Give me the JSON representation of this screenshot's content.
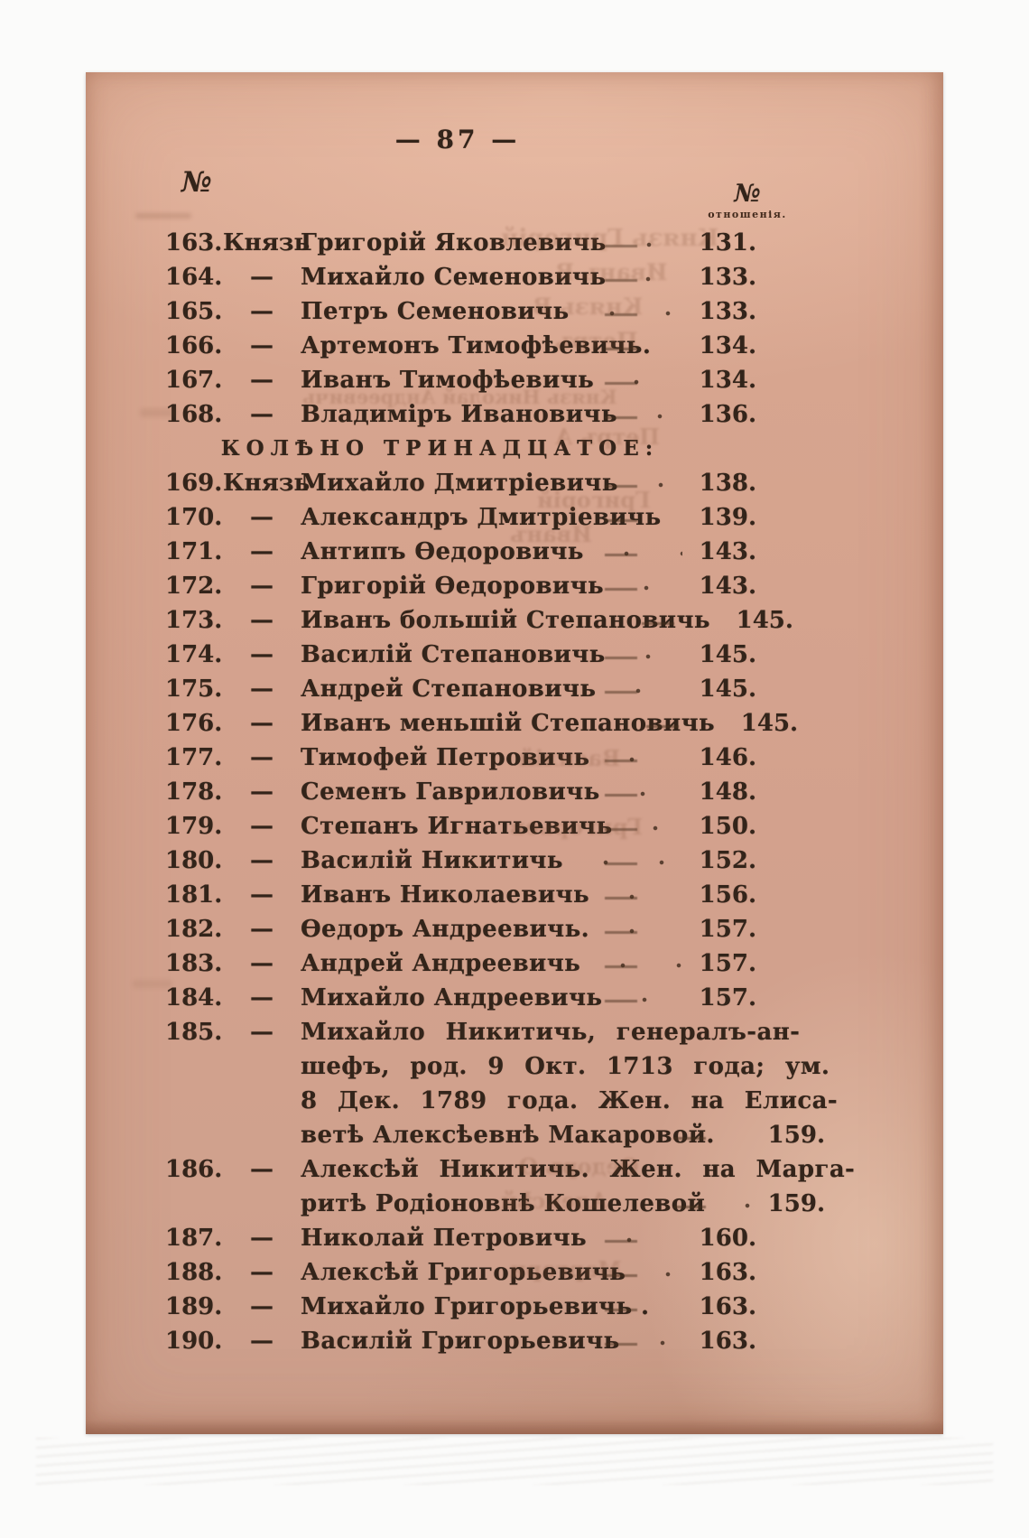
{
  "page": {
    "folio": "— 87 —",
    "left_col_header": "№",
    "right_col_header": "№",
    "right_col_caption": "отношенія.",
    "paper_color": "#d5a28c",
    "ink_color": "#33241a"
  },
  "sections": [
    {
      "header": "",
      "entries": [
        {
          "num": "163.",
          "prefix": "Князь",
          "lines": [
            "Григорій Яковлевичь"
          ],
          "page": "131."
        },
        {
          "num": "164.",
          "prefix": "—",
          "lines": [
            "Михайло Семеновичь"
          ],
          "page": "133."
        },
        {
          "num": "165.",
          "prefix": "—",
          "lines": [
            "Петръ Семеновичь"
          ],
          "page": "133."
        },
        {
          "num": "166.",
          "prefix": "—",
          "lines": [
            "Артемонъ Тимофѣевичь."
          ],
          "page": "134."
        },
        {
          "num": "167.",
          "prefix": "—",
          "lines": [
            "Иванъ Тимофѣевичь"
          ],
          "page": "134."
        },
        {
          "num": "168.",
          "prefix": "—",
          "lines": [
            "Владиміръ Ивановичь"
          ],
          "page": "136."
        }
      ]
    },
    {
      "header": "КОЛѢНО ТРИНАДЦАТОЕ:",
      "entries": [
        {
          "num": "169.",
          "prefix": "Князь",
          "lines": [
            "Михайло Дмитріевичь"
          ],
          "page": "138."
        },
        {
          "num": "170.",
          "prefix": "—",
          "lines": [
            "Александръ Дмитріевичь"
          ],
          "page": "139."
        },
        {
          "num": "171.",
          "prefix": "—",
          "lines": [
            "Антипъ Ѳедоровичь"
          ],
          "page": "143."
        },
        {
          "num": "172.",
          "prefix": "—",
          "lines": [
            "Григорій Ѳедоровичь"
          ],
          "page": "143."
        },
        {
          "num": "173.",
          "prefix": "—",
          "lines": [
            "Иванъ большій Степановичь"
          ],
          "page": "145."
        },
        {
          "num": "174.",
          "prefix": "—",
          "lines": [
            "Василій Степановичь"
          ],
          "page": "145."
        },
        {
          "num": "175.",
          "prefix": "—",
          "lines": [
            "Андрей Степановичь"
          ],
          "page": "145."
        },
        {
          "num": "176.",
          "prefix": "—",
          "lines": [
            "Иванъ меньшій Степановичь"
          ],
          "page": "145."
        },
        {
          "num": "177.",
          "prefix": "—",
          "lines": [
            "Тимофей Петровичь"
          ],
          "page": "146."
        },
        {
          "num": "178.",
          "prefix": "—",
          "lines": [
            "Семенъ Гавриловичь"
          ],
          "page": "148."
        },
        {
          "num": "179.",
          "prefix": "—",
          "lines": [
            "Степанъ Игнатьевичь"
          ],
          "page": "150."
        },
        {
          "num": "180.",
          "prefix": "—",
          "lines": [
            "Василій Никитичь"
          ],
          "page": "152."
        },
        {
          "num": "181.",
          "prefix": "—",
          "lines": [
            "Иванъ Николаевичь"
          ],
          "page": "156."
        },
        {
          "num": "182.",
          "prefix": "—",
          "lines": [
            "Ѳедоръ Андреевичь."
          ],
          "page": "157."
        },
        {
          "num": "183.",
          "prefix": "—",
          "lines": [
            "Андрей Андреевичь"
          ],
          "page": "157."
        },
        {
          "num": "184.",
          "prefix": "—",
          "lines": [
            "Михайло Андреевичь"
          ],
          "page": "157."
        },
        {
          "num": "185.",
          "prefix": "—",
          "lines": [
            "Михайло Никитичь, генералъ-ан-",
            "шефъ, род. 9 Окт. 1713 года; ум.",
            "8 Дек. 1789 года. Жен. на Елиса-",
            "ветѣ Алексѣевнѣ Макаровой."
          ],
          "page": "159."
        },
        {
          "num": "186.",
          "prefix": "—",
          "lines": [
            "Алексѣй Никитичь. Жен. на Марга-",
            "ритѣ Родіоновнѣ Кошелевой"
          ],
          "page": "159."
        },
        {
          "num": "187.",
          "prefix": "—",
          "lines": [
            "Николай Петровичь"
          ],
          "page": "160."
        },
        {
          "num": "188.",
          "prefix": "—",
          "lines": [
            "Алексѣй Григорьевичь"
          ],
          "page": "163."
        },
        {
          "num": "189.",
          "prefix": "—",
          "lines": [
            "Михайло Григорьевичь ."
          ],
          "page": "163."
        },
        {
          "num": "190.",
          "prefix": "—",
          "lines": [
            "Василій Григорьевичь"
          ],
          "page": "163."
        }
      ]
    }
  ],
  "scan_artifacts": {
    "ghost_fragments": [
      "Князь Григорій",
      "Иванъ В",
      "Князь В",
      "Петръ",
      "Князь Николай Андреевичь",
      "Петръ А",
      "Григорій",
      "Иванъ",
      "Василій",
      "Григорьев",
      "Ѳедоръ О",
      "Алексѣй",
      "Маргари"
    ]
  }
}
